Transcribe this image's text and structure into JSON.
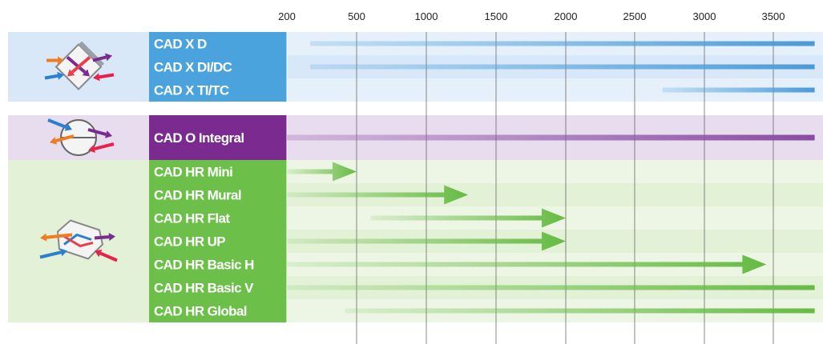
{
  "chart_data": {
    "type": "bar",
    "title": "",
    "xlabel": "",
    "ylabel": "",
    "x_ticks": [
      200,
      500,
      1000,
      1500,
      2000,
      2500,
      3000,
      3500
    ],
    "xlim": [
      200,
      3800
    ],
    "grid": true,
    "colors": {
      "group1_accent": "#4ba3dd",
      "group1_bg": "#d9e8f8",
      "group1_bar": "#5aaae0",
      "group2_accent": "#7b2b90",
      "group2_bg": "#e8dcef",
      "group2_bar": "#9a5fb0",
      "group3_accent": "#6cc04a",
      "group3_bg": "#e3f1d6",
      "group3_bar": "#6cc04a"
    },
    "groups": [
      {
        "icon": "cross-flow-heat-exchanger-icon",
        "color_key": "group1",
        "series": [
          {
            "name": "CAD X D",
            "start": 300,
            "end": 3800,
            "arrow": false
          },
          {
            "name": "CAD X DI/DC",
            "start": 300,
            "end": 3800,
            "arrow": false
          },
          {
            "name": "CAD X TI/TC",
            "start": 2700,
            "end": 3800,
            "arrow": false
          }
        ]
      },
      {
        "icon": "rotary-heat-exchanger-icon",
        "color_key": "group2",
        "series": [
          {
            "name": "CAD O Integral",
            "start": 200,
            "end": 3800,
            "arrow": false
          }
        ]
      },
      {
        "icon": "counter-flow-heat-exchanger-icon",
        "color_key": "group3",
        "series": [
          {
            "name": "CAD HR Mini",
            "start": 200,
            "end": 500,
            "arrow": true
          },
          {
            "name": "CAD HR Mural",
            "start": 200,
            "end": 1300,
            "arrow": true
          },
          {
            "name": "CAD HR Flat",
            "start": 600,
            "end": 2000,
            "arrow": true
          },
          {
            "name": "CAD HR UP",
            "start": 200,
            "end": 2000,
            "arrow": true
          },
          {
            "name": "CAD HR Basic H",
            "start": 200,
            "end": 3450,
            "arrow": true
          },
          {
            "name": "CAD HR Basic V",
            "start": 200,
            "end": 3800,
            "arrow": false
          },
          {
            "name": "CAD HR Global",
            "start": 450,
            "end": 3800,
            "arrow": false
          }
        ]
      }
    ]
  }
}
